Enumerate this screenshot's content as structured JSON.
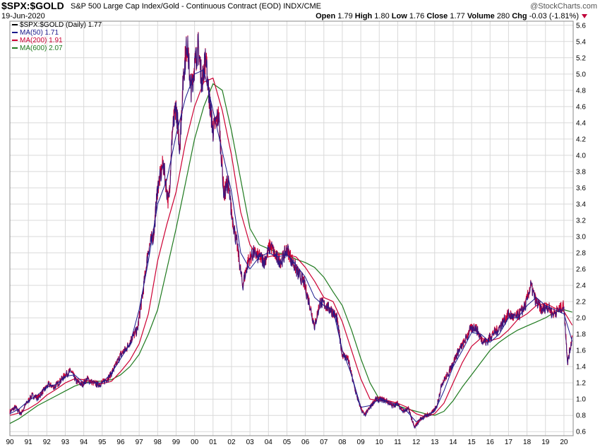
{
  "header": {
    "symbol": "$SPX:$GOLD",
    "description": "S&P 500 Large Cap Index/Gold - Continuous Contract (EOD)  INDX/CME",
    "date": "19-Jun-2020",
    "brand": "@StockCharts.com",
    "ohlc": {
      "open_label": "Open",
      "open": "1.79",
      "high_label": "High",
      "high": "1.80",
      "low_label": "Low",
      "low": "1.76",
      "close_label": "Close",
      "close": "1.77",
      "volume_label": "Volume",
      "volume": "280",
      "chg_label": "Chg",
      "chg": "-0.03 (-1.81%)"
    }
  },
  "colors": {
    "price": "#1a1a8c",
    "ma50": "#1a1a8c",
    "ma200": "#cc0033",
    "ma600": "#1f7a1f",
    "grid": "#d9d9d9",
    "price_red": "#cc0033"
  },
  "chart_data": {
    "type": "line",
    "title": "$SPX:$GOLD S&P 500 Large Cap Index/Gold - Continuous Contract (EOD)",
    "xlabel": "",
    "ylabel": "",
    "xlim": [
      1990,
      2020.5
    ],
    "ylim": [
      0.55,
      5.65
    ],
    "grid": true,
    "y_axis_side": "right",
    "legend_position": "top-left",
    "x_ticks": [
      {
        "value": 1990,
        "label": "90"
      },
      {
        "value": 1991,
        "label": "91"
      },
      {
        "value": 1992,
        "label": "92"
      },
      {
        "value": 1993,
        "label": "93"
      },
      {
        "value": 1994,
        "label": "94"
      },
      {
        "value": 1995,
        "label": "95"
      },
      {
        "value": 1996,
        "label": "96"
      },
      {
        "value": 1997,
        "label": "97"
      },
      {
        "value": 1998,
        "label": "98"
      },
      {
        "value": 1999,
        "label": "99"
      },
      {
        "value": 2000,
        "label": "00"
      },
      {
        "value": 2001,
        "label": "01"
      },
      {
        "value": 2002,
        "label": "02"
      },
      {
        "value": 2003,
        "label": "03"
      },
      {
        "value": 2004,
        "label": "04"
      },
      {
        "value": 2005,
        "label": "05"
      },
      {
        "value": 2006,
        "label": "06"
      },
      {
        "value": 2007,
        "label": "07"
      },
      {
        "value": 2008,
        "label": "08"
      },
      {
        "value": 2009,
        "label": "09"
      },
      {
        "value": 2010,
        "label": "10"
      },
      {
        "value": 2011,
        "label": "11"
      },
      {
        "value": 2012,
        "label": "12"
      },
      {
        "value": 2013,
        "label": "13"
      },
      {
        "value": 2014,
        "label": "14"
      },
      {
        "value": 2015,
        "label": "15"
      },
      {
        "value": 2016,
        "label": "16"
      },
      {
        "value": 2017,
        "label": "17"
      },
      {
        "value": 2018,
        "label": "18"
      },
      {
        "value": 2019,
        "label": "19"
      },
      {
        "value": 2020,
        "label": "20"
      }
    ],
    "y_ticks": [
      {
        "value": 0.6,
        "label": "0.6"
      },
      {
        "value": 0.8,
        "label": "0.8"
      },
      {
        "value": 1.0,
        "label": "1.0"
      },
      {
        "value": 1.2,
        "label": "1.2"
      },
      {
        "value": 1.4,
        "label": "1.4"
      },
      {
        "value": 1.6,
        "label": "1.6"
      },
      {
        "value": 1.8,
        "label": "1.8"
      },
      {
        "value": 2.0,
        "label": "2.0"
      },
      {
        "value": 2.2,
        "label": "2.2"
      },
      {
        "value": 2.4,
        "label": "2.4"
      },
      {
        "value": 2.6,
        "label": "2.6"
      },
      {
        "value": 2.8,
        "label": "2.8"
      },
      {
        "value": 3.0,
        "label": "3.0"
      },
      {
        "value": 3.2,
        "label": "3.2"
      },
      {
        "value": 3.4,
        "label": "3.4"
      },
      {
        "value": 3.6,
        "label": "3.6"
      },
      {
        "value": 3.8,
        "label": "3.8"
      },
      {
        "value": 4.0,
        "label": "4.0"
      },
      {
        "value": 4.2,
        "label": "4.2"
      },
      {
        "value": 4.4,
        "label": "4.4"
      },
      {
        "value": 4.6,
        "label": "4.6"
      },
      {
        "value": 4.8,
        "label": "4.8"
      },
      {
        "value": 5.0,
        "label": "5.0"
      },
      {
        "value": 5.2,
        "label": "5.2"
      },
      {
        "value": 5.4,
        "label": "5.4"
      },
      {
        "value": 5.6,
        "label": "5.6"
      }
    ],
    "series": [
      {
        "name": "$SPX:$GOLD (Daily) 1.77",
        "key": "price",
        "x": [
          1990.0,
          1990.3,
          1990.6,
          1990.9,
          1991.2,
          1991.5,
          1991.8,
          1992.1,
          1992.4,
          1992.7,
          1993.0,
          1993.3,
          1993.6,
          1993.9,
          1994.2,
          1994.5,
          1994.8,
          1995.1,
          1995.4,
          1995.7,
          1996.0,
          1996.3,
          1996.6,
          1996.9,
          1997.2,
          1997.5,
          1997.8,
          1998.0,
          1998.3,
          1998.6,
          1998.8,
          1999.0,
          1999.2,
          1999.4,
          1999.6,
          1999.8,
          2000.0,
          2000.2,
          2000.4,
          2000.6,
          2000.8,
          2001.0,
          2001.3,
          2001.6,
          2001.8,
          2002.0,
          2002.3,
          2002.6,
          2002.9,
          2003.2,
          2003.5,
          2003.8,
          2004.1,
          2004.4,
          2004.7,
          2005.0,
          2005.3,
          2005.6,
          2005.9,
          2006.2,
          2006.5,
          2006.8,
          2007.1,
          2007.4,
          2007.7,
          2008.0,
          2008.3,
          2008.6,
          2008.9,
          2009.2,
          2009.5,
          2009.8,
          2010.1,
          2010.4,
          2010.7,
          2011.0,
          2011.3,
          2011.6,
          2011.9,
          2012.2,
          2012.5,
          2012.8,
          2013.1,
          2013.4,
          2013.7,
          2014.0,
          2014.3,
          2014.6,
          2014.9,
          2015.2,
          2015.5,
          2015.8,
          2016.1,
          2016.4,
          2016.7,
          2017.0,
          2017.3,
          2017.6,
          2017.9,
          2018.2,
          2018.5,
          2018.8,
          2019.1,
          2019.4,
          2019.7,
          2020.0,
          2020.2,
          2020.45
        ],
        "values": [
          0.85,
          0.9,
          0.82,
          0.95,
          1.05,
          1.02,
          1.1,
          1.18,
          1.15,
          1.22,
          1.3,
          1.35,
          1.22,
          1.18,
          1.25,
          1.2,
          1.18,
          1.22,
          1.28,
          1.4,
          1.55,
          1.62,
          1.75,
          1.85,
          2.3,
          2.85,
          3.05,
          3.6,
          3.9,
          3.4,
          4.3,
          4.6,
          4.1,
          5.0,
          5.4,
          4.8,
          5.1,
          5.35,
          4.9,
          5.2,
          4.7,
          4.3,
          4.5,
          3.5,
          3.7,
          3.3,
          2.9,
          2.4,
          2.7,
          2.8,
          2.75,
          2.7,
          2.9,
          2.75,
          2.7,
          2.85,
          2.7,
          2.55,
          2.45,
          2.2,
          1.9,
          2.2,
          2.15,
          2.1,
          2.0,
          1.55,
          1.5,
          1.2,
          0.95,
          0.8,
          0.9,
          1.0,
          1.0,
          0.98,
          0.92,
          0.95,
          0.85,
          0.88,
          0.65,
          0.75,
          0.8,
          0.82,
          0.9,
          1.2,
          1.3,
          1.45,
          1.6,
          1.7,
          1.85,
          1.9,
          1.75,
          1.7,
          1.8,
          1.85,
          1.95,
          2.05,
          2.0,
          2.05,
          2.15,
          2.4,
          2.2,
          2.1,
          2.15,
          2.05,
          2.1,
          2.15,
          1.45,
          1.77
        ]
      },
      {
        "name": "MA(50) 1.71",
        "key": "ma50",
        "x": [
          1990.0,
          1990.5,
          1991.0,
          1991.5,
          1992.0,
          1992.5,
          1993.0,
          1993.5,
          1994.0,
          1994.5,
          1995.0,
          1995.5,
          1996.0,
          1996.5,
          1997.0,
          1997.5,
          1998.0,
          1998.5,
          1999.0,
          1999.5,
          2000.0,
          2000.5,
          2001.0,
          2001.5,
          2002.0,
          2002.5,
          2003.0,
          2003.5,
          2004.0,
          2004.5,
          2005.0,
          2005.5,
          2006.0,
          2006.5,
          2007.0,
          2007.5,
          2008.0,
          2008.5,
          2009.0,
          2009.5,
          2010.0,
          2010.5,
          2011.0,
          2011.5,
          2012.0,
          2012.5,
          2013.0,
          2013.5,
          2014.0,
          2014.5,
          2015.0,
          2015.5,
          2016.0,
          2016.5,
          2017.0,
          2017.5,
          2018.0,
          2018.5,
          2019.0,
          2019.5,
          2020.0,
          2020.45
        ],
        "values": [
          0.82,
          0.88,
          0.98,
          1.05,
          1.15,
          1.18,
          1.28,
          1.3,
          1.2,
          1.2,
          1.2,
          1.32,
          1.5,
          1.68,
          2.1,
          2.7,
          3.4,
          3.7,
          4.25,
          4.7,
          5.0,
          5.05,
          4.55,
          4.05,
          3.55,
          2.8,
          2.6,
          2.75,
          2.8,
          2.75,
          2.78,
          2.65,
          2.5,
          2.25,
          2.15,
          2.1,
          1.6,
          1.3,
          0.9,
          0.92,
          1.0,
          0.97,
          0.93,
          0.85,
          0.72,
          0.8,
          0.85,
          1.1,
          1.4,
          1.6,
          1.82,
          1.8,
          1.7,
          1.8,
          2.0,
          2.0,
          2.15,
          2.25,
          2.15,
          2.1,
          2.05,
          1.71
        ]
      },
      {
        "name": "MA(200) 1.91",
        "key": "ma200",
        "x": [
          1990.0,
          1990.5,
          1991.0,
          1991.5,
          1992.0,
          1992.5,
          1993.0,
          1993.5,
          1994.0,
          1994.5,
          1995.0,
          1995.5,
          1996.0,
          1996.5,
          1997.0,
          1997.5,
          1998.0,
          1998.5,
          1999.0,
          1999.5,
          2000.0,
          2000.5,
          2001.0,
          2001.5,
          2002.0,
          2002.5,
          2003.0,
          2003.5,
          2004.0,
          2004.5,
          2005.0,
          2005.5,
          2006.0,
          2006.5,
          2007.0,
          2007.5,
          2008.0,
          2008.5,
          2009.0,
          2009.5,
          2010.0,
          2010.5,
          2011.0,
          2011.5,
          2012.0,
          2012.5,
          2013.0,
          2013.5,
          2014.0,
          2014.5,
          2015.0,
          2015.5,
          2016.0,
          2016.5,
          2017.0,
          2017.5,
          2018.0,
          2018.5,
          2019.0,
          2019.5,
          2020.0,
          2020.45
        ],
        "values": [
          0.8,
          0.83,
          0.88,
          0.95,
          1.05,
          1.12,
          1.2,
          1.25,
          1.24,
          1.21,
          1.19,
          1.22,
          1.34,
          1.48,
          1.68,
          2.05,
          2.7,
          3.15,
          3.55,
          4.15,
          4.6,
          4.9,
          4.95,
          4.55,
          4.0,
          3.3,
          2.9,
          2.72,
          2.75,
          2.78,
          2.78,
          2.75,
          2.62,
          2.45,
          2.25,
          2.2,
          1.95,
          1.6,
          1.25,
          1.0,
          0.98,
          0.98,
          0.95,
          0.9,
          0.82,
          0.78,
          0.82,
          0.95,
          1.2,
          1.45,
          1.65,
          1.75,
          1.72,
          1.75,
          1.85,
          1.98,
          2.05,
          2.15,
          2.18,
          2.12,
          2.08,
          1.91
        ]
      },
      {
        "name": "MA(600) 2.07",
        "key": "ma600",
        "x": [
          1990.0,
          1990.5,
          1991.0,
          1991.5,
          1992.0,
          1992.5,
          1993.0,
          1993.5,
          1994.0,
          1994.5,
          1995.0,
          1995.5,
          1996.0,
          1996.5,
          1997.0,
          1997.5,
          1998.0,
          1998.5,
          1999.0,
          1999.5,
          2000.0,
          2000.5,
          2001.0,
          2001.5,
          2002.0,
          2002.5,
          2003.0,
          2003.5,
          2004.0,
          2004.5,
          2005.0,
          2005.5,
          2006.0,
          2006.5,
          2007.0,
          2007.5,
          2008.0,
          2008.5,
          2009.0,
          2009.5,
          2010.0,
          2010.5,
          2011.0,
          2011.5,
          2012.0,
          2012.5,
          2013.0,
          2013.5,
          2014.0,
          2014.5,
          2015.0,
          2015.5,
          2016.0,
          2016.5,
          2017.0,
          2017.5,
          2018.0,
          2018.5,
          2019.0,
          2019.5,
          2020.0,
          2020.45
        ],
        "values": [
          0.7,
          0.76,
          0.84,
          0.92,
          0.98,
          1.04,
          1.1,
          1.16,
          1.2,
          1.22,
          1.22,
          1.24,
          1.3,
          1.4,
          1.55,
          1.8,
          2.1,
          2.6,
          3.1,
          3.65,
          4.2,
          4.6,
          4.88,
          4.8,
          4.3,
          3.7,
          3.1,
          2.9,
          2.85,
          2.8,
          2.78,
          2.72,
          2.68,
          2.62,
          2.5,
          2.32,
          2.15,
          1.85,
          1.5,
          1.2,
          1.0,
          0.95,
          0.92,
          0.88,
          0.85,
          0.82,
          0.8,
          0.85,
          0.98,
          1.15,
          1.3,
          1.45,
          1.6,
          1.7,
          1.78,
          1.85,
          1.9,
          1.95,
          2.0,
          2.07,
          2.1,
          2.07
        ]
      }
    ]
  }
}
